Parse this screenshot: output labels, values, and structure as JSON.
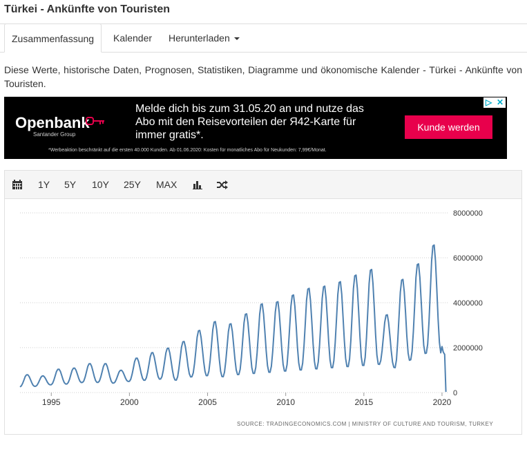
{
  "page": {
    "title": "Türkei - Ankünfte von Touristen"
  },
  "tabs": [
    {
      "label": "Zusammenfassung",
      "active": true
    },
    {
      "label": "Kalender",
      "active": false
    },
    {
      "label": "Herunterladen",
      "active": false
    }
  ],
  "description": "Diese Werte, historische Daten, Prognosen, Statistiken, Diagramme und ökonomische Kalender - Türkei - Ankünfte von Touristen.",
  "ad": {
    "brand": "Openbank",
    "brand_sub": "Santander Group",
    "headline": "Melde dich bis zum 31.05.20 an und nutze das Abo mit den Reisevorteilen der Я42-Karte für immer gratis*.",
    "cta": "Kunde werden",
    "disclaimer": "*Werbeaktion beschränkt auf die ersten 40.000 Kunden. Ab 01.06.2020: Kosten für monatliches Abo für Neukunden: 7,99€/Monat.",
    "cta_color": "#e8004c",
    "brand_color": "#000000"
  },
  "toolbar": {
    "calendar_icon": "calendar-icon",
    "ranges": [
      "1Y",
      "5Y",
      "10Y",
      "25Y",
      "MAX"
    ],
    "bar_icon": "bar-chart-icon",
    "shuffle_icon": "shuffle-icon"
  },
  "source_note": "SOURCE: TRADINGECONOMICS.COM  |  MINISTRY OF CULTURE AND TOURISM, TURKEY",
  "chart_data": {
    "type": "line",
    "title": "",
    "xlabel": "",
    "ylabel": "",
    "line_color": "#4f81b0",
    "grid": true,
    "x_ticks": [
      "1995",
      "2000",
      "2005",
      "2010",
      "2015",
      "2020"
    ],
    "y_ticks": [
      "0",
      "2000000",
      "4000000",
      "6000000",
      "8000000"
    ],
    "xlim": [
      1993.0,
      2020.4
    ],
    "ylim": [
      0,
      8000000
    ],
    "seasonal_peaks": [
      {
        "year": 1993,
        "value": 800000
      },
      {
        "year": 1994,
        "value": 750000
      },
      {
        "year": 1995,
        "value": 1050000
      },
      {
        "year": 1996,
        "value": 1100000
      },
      {
        "year": 1997,
        "value": 1300000
      },
      {
        "year": 1998,
        "value": 1300000
      },
      {
        "year": 1999,
        "value": 1000000
      },
      {
        "year": 2000,
        "value": 1550000
      },
      {
        "year": 2001,
        "value": 1800000
      },
      {
        "year": 2002,
        "value": 2000000
      },
      {
        "year": 2003,
        "value": 2300000
      },
      {
        "year": 2004,
        "value": 2800000
      },
      {
        "year": 2005,
        "value": 3200000
      },
      {
        "year": 2006,
        "value": 3100000
      },
      {
        "year": 2007,
        "value": 3550000
      },
      {
        "year": 2008,
        "value": 4000000
      },
      {
        "year": 2009,
        "value": 4100000
      },
      {
        "year": 2010,
        "value": 4400000
      },
      {
        "year": 2011,
        "value": 4700000
      },
      {
        "year": 2012,
        "value": 4800000
      },
      {
        "year": 2013,
        "value": 5000000
      },
      {
        "year": 2014,
        "value": 5300000
      },
      {
        "year": 2015,
        "value": 5550000
      },
      {
        "year": 2016,
        "value": 3500000
      },
      {
        "year": 2017,
        "value": 5100000
      },
      {
        "year": 2018,
        "value": 5800000
      },
      {
        "year": 2019,
        "value": 6650000
      }
    ],
    "seasonal_troughs": [
      {
        "year": 1993,
        "value": 250000
      },
      {
        "year": 1994,
        "value": 280000
      },
      {
        "year": 1995,
        "value": 350000
      },
      {
        "year": 1996,
        "value": 380000
      },
      {
        "year": 1997,
        "value": 450000
      },
      {
        "year": 1998,
        "value": 450000
      },
      {
        "year": 1999,
        "value": 420000
      },
      {
        "year": 2000,
        "value": 500000
      },
      {
        "year": 2001,
        "value": 550000
      },
      {
        "year": 2002,
        "value": 600000
      },
      {
        "year": 2003,
        "value": 550000
      },
      {
        "year": 2004,
        "value": 700000
      },
      {
        "year": 2005,
        "value": 750000
      },
      {
        "year": 2006,
        "value": 700000
      },
      {
        "year": 2007,
        "value": 800000
      },
      {
        "year": 2008,
        "value": 850000
      },
      {
        "year": 2009,
        "value": 900000
      },
      {
        "year": 2010,
        "value": 950000
      },
      {
        "year": 2011,
        "value": 1000000
      },
      {
        "year": 2012,
        "value": 1050000
      },
      {
        "year": 2013,
        "value": 1100000
      },
      {
        "year": 2014,
        "value": 1150000
      },
      {
        "year": 2015,
        "value": 1200000
      },
      {
        "year": 2016,
        "value": 1250000
      },
      {
        "year": 2017,
        "value": 1100000
      },
      {
        "year": 2018,
        "value": 1450000
      },
      {
        "year": 2019,
        "value": 1750000
      }
    ],
    "tail": [
      {
        "x": 2020.0,
        "value": 2050000
      },
      {
        "x": 2020.08,
        "value": 1800000
      },
      {
        "x": 2020.17,
        "value": 1700000
      },
      {
        "x": 2020.25,
        "value": 30000
      }
    ]
  }
}
